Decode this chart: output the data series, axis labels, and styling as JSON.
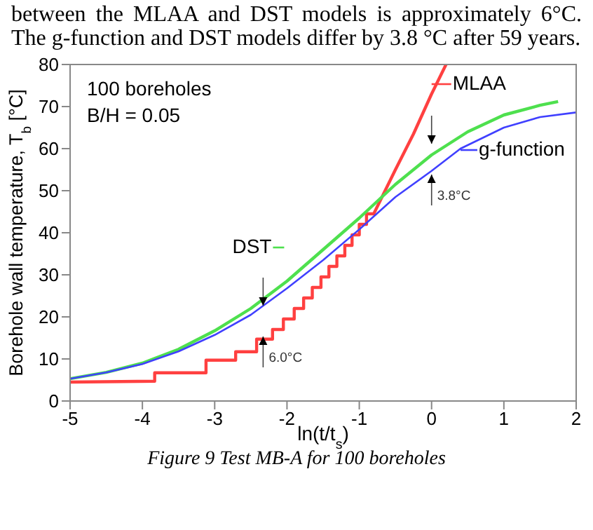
{
  "chart_data": {
    "type": "line",
    "xlabel": "ln(t/t$_{s}$)",
    "ylabel": "Borehole wall temperature, T$_{b}$ [°C]",
    "xlim": [
      -5,
      2
    ],
    "xticks": [
      -5,
      -4,
      -3,
      -2,
      -1,
      0,
      1,
      2
    ],
    "ylim": [
      0,
      80
    ],
    "yticks": [
      0,
      10,
      20,
      30,
      40,
      50,
      60,
      70,
      80
    ],
    "grid": false,
    "legend": "top right",
    "series": [
      {
        "name": "MLAA",
        "color": "#ff4040",
        "x": [
          -5,
          -3.83,
          -3.83,
          -3.12,
          -3.12,
          -2.71,
          -2.71,
          -2.42,
          -2.42,
          -2.2,
          -2.2,
          -2.05,
          -2.05,
          -1.9,
          -1.9,
          -1.77,
          -1.77,
          -1.65,
          -1.65,
          -1.53,
          -1.53,
          -1.42,
          -1.42,
          -1.31,
          -1.31,
          -1.2,
          -1.2,
          -1.1,
          -1.1,
          -1,
          -1,
          -0.9,
          -0.9,
          -0.8,
          -0.7,
          -0.5,
          -0.25,
          0,
          0.2
        ],
        "values": [
          4.5,
          4.7,
          6.7,
          6.7,
          9.7,
          9.7,
          11.7,
          11.7,
          14.7,
          14.7,
          17,
          17,
          19.5,
          19.5,
          22,
          22,
          24.5,
          24.5,
          27,
          27,
          29.5,
          29.5,
          32,
          32,
          34.5,
          34.5,
          37,
          37,
          39.5,
          39.5,
          42,
          42,
          44.5,
          44.5,
          48,
          55,
          63.5,
          73,
          80
        ]
      },
      {
        "name": "DST",
        "color": "#4ee04e",
        "x": [
          -5,
          -4.5,
          -4,
          -3.5,
          -3,
          -2.5,
          -2,
          -1.5,
          -1,
          -0.5,
          0,
          0.5,
          1,
          1.5,
          1.75
        ],
        "values": [
          5.3,
          6.8,
          9,
          12.3,
          16.7,
          22,
          28.5,
          36,
          43.5,
          51.5,
          58.5,
          64,
          68,
          70.3,
          71.2
        ]
      },
      {
        "name": "g-function",
        "color": "#4040ff",
        "x": [
          -5,
          -4.5,
          -4,
          -3.5,
          -3,
          -2.5,
          -2,
          -1.5,
          -1,
          -0.5,
          0,
          0.4,
          1,
          1.5,
          2
        ],
        "values": [
          5.3,
          6.8,
          8.8,
          11.8,
          15.7,
          20.5,
          26.8,
          33.5,
          40.8,
          48.5,
          54.7,
          60,
          65,
          67.5,
          68.6
        ]
      }
    ],
    "annotations": [
      "between the MLAA and DST models is approximately 6°C. The g-function and DST models differ by 3.8 °C after 59 years.",
      "Figure 9 Test MB-A for 100 boreholes",
      "100 boreholes",
      "B/H = 0.05",
      "6.0°C",
      "3.8°C"
    ]
  }
}
